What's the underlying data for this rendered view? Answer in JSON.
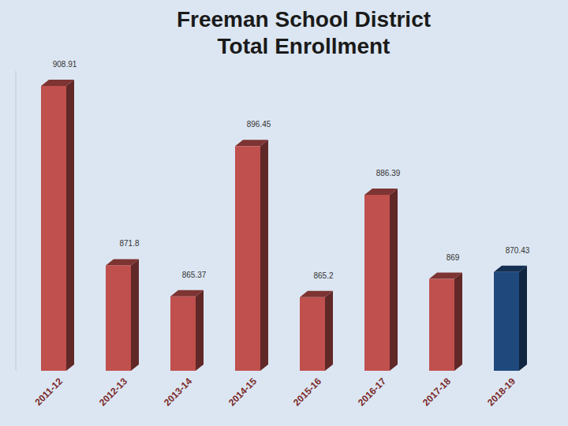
{
  "chart_data": {
    "type": "bar",
    "title": "Freeman School District Total Enrollment",
    "categories": [
      "2011-12",
      "2012-13",
      "2013-14",
      "2014-15",
      "2015-16",
      "2016-17",
      "2017-18",
      "2018-19"
    ],
    "values": [
      908.91,
      871.8,
      865.37,
      896.45,
      865.2,
      886.39,
      869,
      870.43
    ],
    "colors": [
      "#c0504d",
      "#c0504d",
      "#c0504d",
      "#c0504d",
      "#c0504d",
      "#c0504d",
      "#c0504d",
      "#1f497d"
    ],
    "ylim": [
      850,
      912
    ],
    "grid": false,
    "data_labels": true,
    "tick_labels": "x"
  }
}
